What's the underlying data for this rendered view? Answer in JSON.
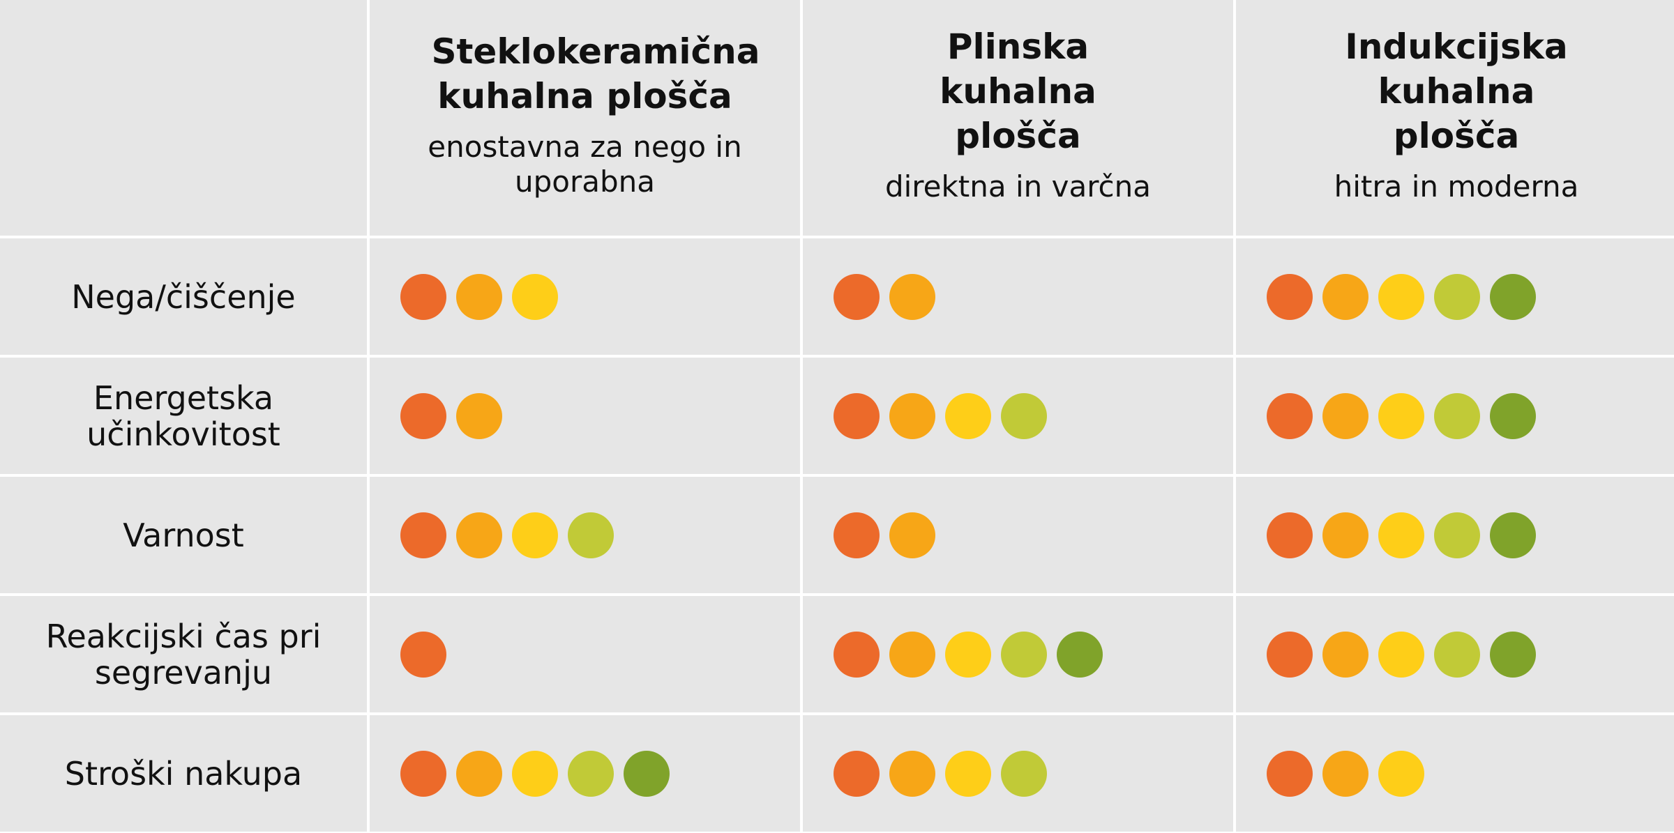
{
  "colors": [
    "#EC6A2A",
    "#F7A617",
    "#FECE18",
    "#C1CA37",
    "#80A32A"
  ],
  "columns": [
    {
      "title": "Steklokeramična kuhalna plošča",
      "subtitle": "enostavna za nego in uporabna"
    },
    {
      "title": "Plinska kuhalna plošča",
      "subtitle": "direktna in varčna"
    },
    {
      "title": "Indukcijska kuhalna plošča",
      "subtitle": "hitra in moderna"
    }
  ],
  "rows": [
    {
      "label": "Nega/čiščenje",
      "ratings": [
        3,
        2,
        5
      ]
    },
    {
      "label": "Energetska učinkovitost",
      "ratings": [
        2,
        4,
        5
      ]
    },
    {
      "label": "Varnost",
      "ratings": [
        4,
        2,
        5
      ]
    },
    {
      "label": "Reakcijski čas pri segrevanju",
      "ratings": [
        1,
        5,
        5
      ]
    },
    {
      "label": "Stroški nakupa",
      "ratings": [
        5,
        4,
        3
      ]
    }
  ],
  "max_rating": 5
}
